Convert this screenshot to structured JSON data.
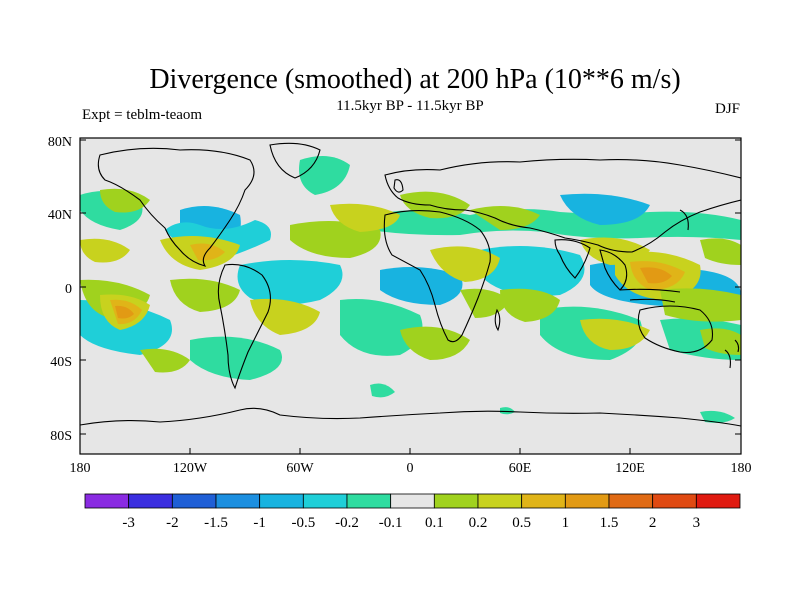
{
  "title": "Divergence (smoothed) at 200 hPa (10**6 m/s)",
  "subtitle": "11.5kyr BP - 11.5kyr BP",
  "left_label": "Expt = teblm-teaom",
  "right_label": "DJF",
  "y_ticks": [
    "80N",
    "40N",
    "0",
    "40S",
    "80S"
  ],
  "x_ticks": [
    "180",
    "120W",
    "60W",
    "0",
    "60E",
    "120E",
    "180"
  ],
  "colorbar": {
    "colors": [
      "#8a2be2",
      "#3b2ee0",
      "#1f5fd6",
      "#1c8fe0",
      "#18b3e0",
      "#1fcfd8",
      "#2fdca0",
      "#e6e6e6",
      "#a0d21e",
      "#c8d21e",
      "#e0b418",
      "#e29a14",
      "#e06a14",
      "#e04a12",
      "#e01a10"
    ],
    "labels": [
      "-3",
      "-2",
      "-1.5",
      "-1",
      "-0.5",
      "-0.2",
      "-0.1",
      "0.1",
      "0.2",
      "0.5",
      "1",
      "1.5",
      "2",
      "3"
    ]
  },
  "colors": {
    "background": "#e6e6e6",
    "coast": "#000000"
  }
}
